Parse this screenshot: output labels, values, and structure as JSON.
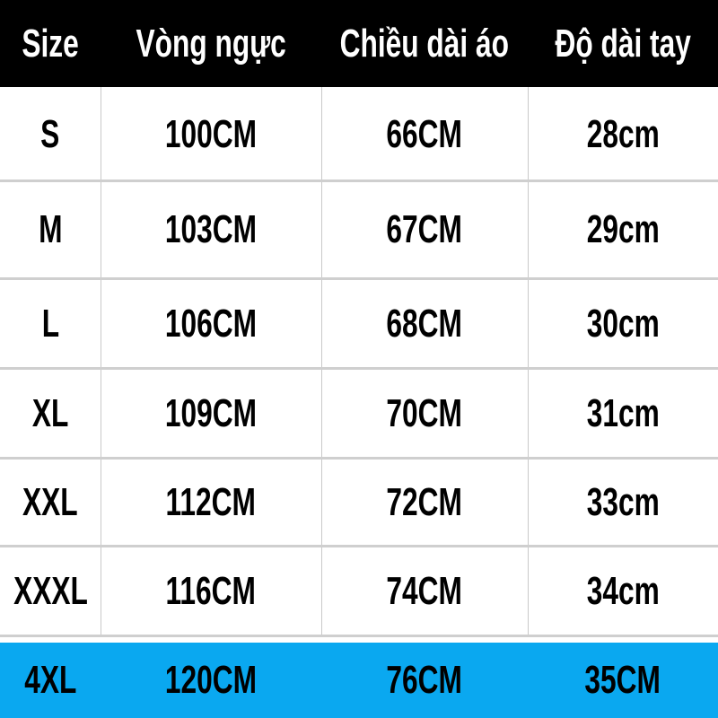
{
  "table": {
    "headers": [
      "Size",
      "Vòng ngực",
      "Chiều dài áo",
      "Độ dài tay"
    ],
    "rows": [
      [
        "S",
        "100CM",
        "66CM",
        "28cm"
      ],
      [
        "M",
        "103CM",
        "67CM",
        "29cm"
      ],
      [
        "L",
        "106CM",
        "68CM",
        "30cm"
      ],
      [
        "XL",
        "109CM",
        "70CM",
        "31cm"
      ],
      [
        "XXL",
        "112CM",
        "72CM",
        "33cm"
      ],
      [
        "XXXL",
        "116CM",
        "74CM",
        "34cm"
      ],
      [
        "4XL",
        "120CM",
        "76CM",
        "35CM"
      ]
    ],
    "header_color": "#000000",
    "highlight_row_color": "#0aa8f0"
  }
}
